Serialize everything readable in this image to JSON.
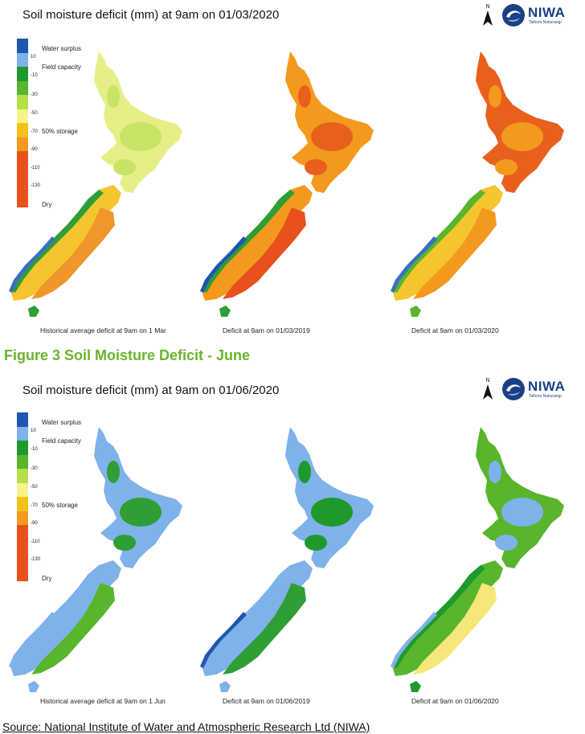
{
  "figure_heading": "Figure 3 Soil Moisture Deficit - June",
  "source_label": "Source:",
  "source_text": " National Institute of Water and Atmospheric Research Ltd (NIWA)",
  "logo": {
    "text": "NIWA",
    "tagline": "Taihoro Nukurangi",
    "icon": "niwa-swirl-icon",
    "color": "#1a3f85"
  },
  "north_arrow": {
    "label": "N",
    "icon": "north-arrow-icon"
  },
  "legend": {
    "ticks": [
      "10",
      "-10",
      "-30",
      "-50",
      "-70",
      "-90",
      "-110",
      "-130"
    ],
    "labels": {
      "water_surplus": "Water surplus",
      "field_capacity": "Field capacity",
      "half_storage": "50% storage",
      "dry": "Dry"
    },
    "colors": [
      "#1f56b0",
      "#7fb2ea",
      "#1e9a2c",
      "#58b52c",
      "#b5e04a",
      "#f5f38a",
      "#f3c21a",
      "#f39a1e",
      "#e8501c"
    ]
  },
  "panels": [
    {
      "title": "Soil moisture deficit (mm) at  9am on 01/03/2020",
      "maps": [
        {
          "caption": "Historical average deficit at 9am on 1 Mar",
          "palette": {
            "north": "#e6ee88",
            "north_patch": "#c7e465",
            "south": "#f5c530",
            "south_patch": "#f0962a",
            "west": "#2e9e35",
            "west_fringe": "#3a6fc4"
          }
        },
        {
          "caption": "Deficit at 9am on 01/03/2019",
          "palette": {
            "north": "#f39a1e",
            "north_patch": "#e8601c",
            "south": "#f39a1e",
            "south_patch": "#e8501c",
            "west": "#2e9e35",
            "west_fringe": "#1f56b0"
          }
        },
        {
          "caption": "Deficit at 9am on 01/03/2020",
          "palette": {
            "north": "#e8601c",
            "north_patch": "#f39a1e",
            "south": "#f5c530",
            "south_patch": "#f39a1e",
            "west": "#58b52c",
            "west_fringe": "#3a6fc4"
          }
        }
      ]
    },
    {
      "title": "Soil moisture deficit (mm) at  9am on 01/06/2020",
      "maps": [
        {
          "caption": "Historical average deficit at 9am on 1 Jun",
          "palette": {
            "north": "#7fb2ea",
            "north_patch": "#2e9e35",
            "south": "#7fb2ea",
            "south_patch": "#58b52c",
            "west": "#7fb2ea",
            "west_fringe": "#7fb2ea"
          }
        },
        {
          "caption": "Deficit at 9am on 01/06/2019",
          "palette": {
            "north": "#7fb2ea",
            "north_patch": "#1e9a2c",
            "south": "#7fb2ea",
            "south_patch": "#2e9e35",
            "west": "#7fb2ea",
            "west_fringe": "#1f56b0"
          }
        },
        {
          "caption": "Deficit at 9am on 01/06/2020",
          "palette": {
            "north": "#58b52c",
            "north_patch": "#7fb2ea",
            "south": "#58b52c",
            "south_patch": "#f5e878",
            "west": "#1e9a2c",
            "west_fringe": "#7fb2ea"
          }
        }
      ]
    }
  ]
}
